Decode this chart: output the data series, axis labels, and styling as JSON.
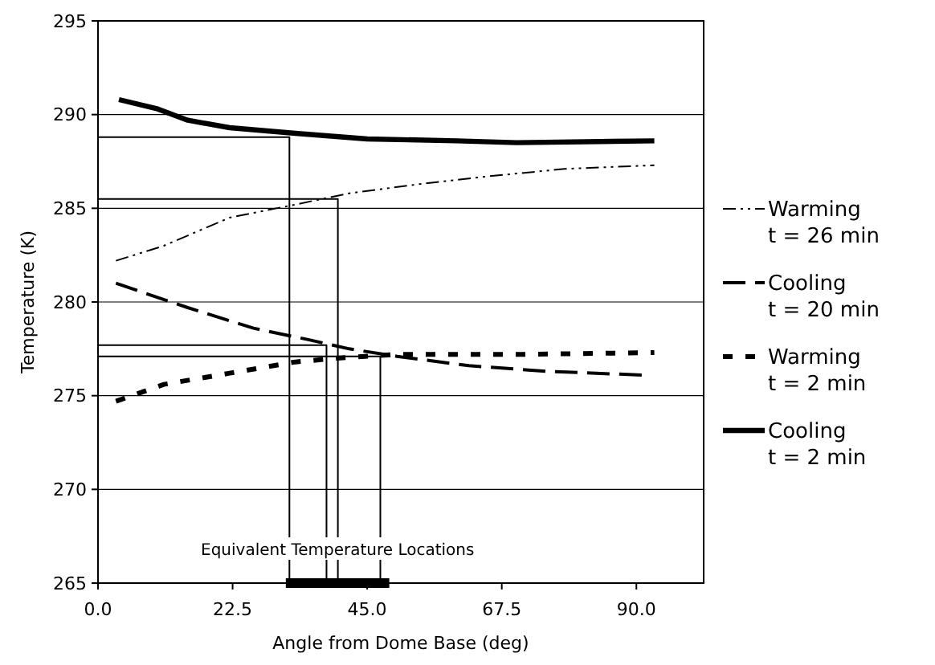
{
  "chart_data": {
    "type": "line",
    "xlabel": "Angle from Dome Base (deg)",
    "ylabel": "Temperature (K)",
    "xlim": [
      0,
      101.25
    ],
    "ylim": [
      265,
      295
    ],
    "xticks": [
      {
        "value": 0,
        "label": "0.0"
      },
      {
        "value": 22.5,
        "label": "22.5"
      },
      {
        "value": 45,
        "label": "45.0"
      },
      {
        "value": 67.5,
        "label": "67.5"
      },
      {
        "value": 90,
        "label": "90.0"
      }
    ],
    "yticks": [
      265,
      270,
      275,
      280,
      285,
      290,
      295
    ],
    "grid": "y",
    "legend": "right",
    "marker": "none",
    "series": [
      {
        "name": "Warming\nt = 26 min",
        "color": "#000000",
        "line_style": "dashdot",
        "x": [
          3,
          11,
          22,
          33,
          42,
          54,
          65,
          78,
          93
        ],
        "values": [
          282.2,
          283.0,
          284.5,
          285.2,
          285.8,
          286.3,
          286.7,
          287.1,
          287.3
        ]
      },
      {
        "name": "Cooling\nt = 20 min",
        "color": "#000000",
        "line_style": "dashed",
        "x": [
          3,
          15,
          26,
          35,
          42,
          50,
          62,
          75,
          91
        ],
        "values": [
          281.0,
          279.7,
          278.6,
          278.0,
          277.5,
          277.1,
          276.6,
          276.3,
          276.1
        ]
      },
      {
        "name": "Warming\nt = 2 min",
        "color": "#000000",
        "line_style": "dotted",
        "x": [
          3,
          11,
          22,
          33,
          40,
          50,
          70,
          93
        ],
        "values": [
          274.7,
          275.6,
          276.2,
          276.8,
          277.0,
          277.2,
          277.2,
          277.3
        ]
      },
      {
        "name": "Cooling\nt = 2 min",
        "color": "#000000",
        "line_style": "solid",
        "x": [
          3.5,
          10,
          15,
          22,
          33,
          45,
          60,
          70,
          93
        ],
        "values": [
          290.8,
          290.3,
          289.7,
          289.3,
          289.0,
          288.7,
          288.6,
          288.5,
          288.6
        ]
      },
      {
        "type": "line",
        "color": "#000000",
        "x": [
          0,
          32,
          32
        ],
        "values": [
          288.8,
          288.8,
          265
        ]
      },
      {
        "type": "line",
        "color": "#000000",
        "x": [
          0,
          40.1,
          40.1
        ],
        "values": [
          285.5,
          285.5,
          265
        ]
      },
      {
        "type": "line",
        "color": "#000000",
        "x": [
          0,
          38.2,
          38.2
        ],
        "values": [
          277.7,
          277.7,
          265
        ]
      },
      {
        "type": "line",
        "color": "#000000",
        "x": [
          0,
          47.2,
          47.2
        ],
        "values": [
          277.1,
          277.1,
          265
        ]
      },
      {
        "type": "line",
        "color": "#000000",
        "line_style": "solid",
        "x": [
          31.4,
          48.7
        ],
        "values": [
          265,
          265
        ]
      }
    ],
    "annotations": [
      {
        "text": "Equivalent Temperature Locations",
        "x": 40.05,
        "y": 266.5
      }
    ]
  }
}
